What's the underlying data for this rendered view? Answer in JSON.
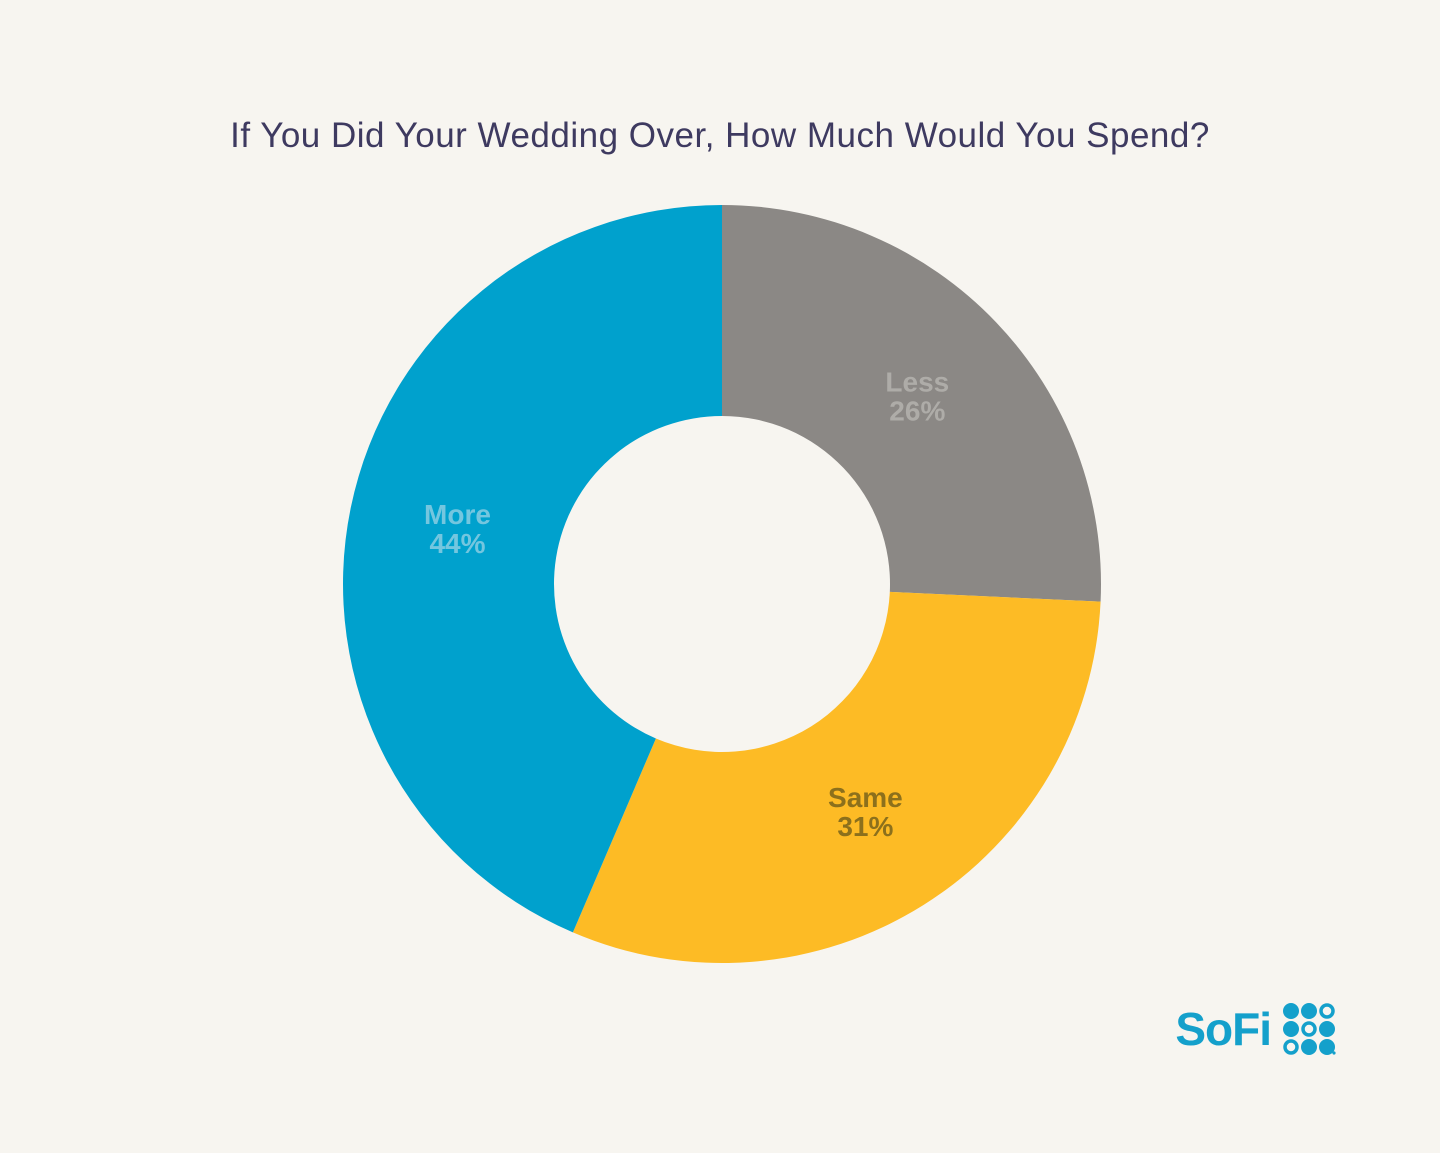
{
  "page": {
    "background": "#F7F5F0"
  },
  "chart_data": {
    "type": "pie",
    "subtype": "donut",
    "title": "If You Did Your Wedding Over, How Much Would You Spend?",
    "title_color": "#3E3A60",
    "start_angle_deg": 0,
    "direction": "clockwise",
    "inner_radius_ratio": 0.443,
    "legend": "none",
    "value_suffix": "%",
    "segments": [
      {
        "label": "Less",
        "value": 26,
        "value_text": "26%",
        "color": "#8B8885",
        "label_color": "#AEACA8"
      },
      {
        "label": "Same",
        "value": 31,
        "value_text": "31%",
        "color": "#FDBB25",
        "label_color": "#8C701C"
      },
      {
        "label": "More",
        "value": 44,
        "value_text": "44%",
        "color": "#00A1CD",
        "label_color": "#74C6DF"
      }
    ]
  },
  "logo": {
    "text": "SoFi",
    "color": "#14A0CB",
    "grid_pattern": [
      [
        1,
        1,
        0
      ],
      [
        1,
        0,
        1
      ],
      [
        0,
        1,
        1
      ]
    ]
  }
}
